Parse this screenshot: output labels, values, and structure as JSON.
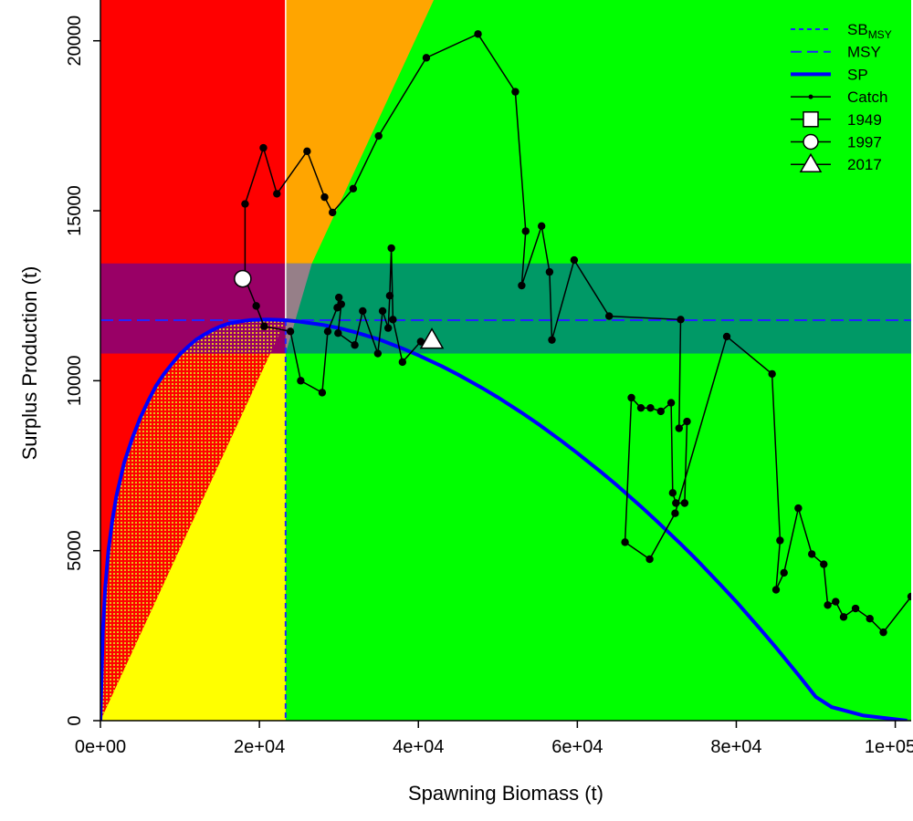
{
  "chart_data": {
    "type": "scatter",
    "title": "",
    "xlabel": "Spawning Biomass (t)",
    "ylabel": "Surplus Production (t)",
    "xlim": [
      0,
      102000
    ],
    "ylim": [
      0,
      21200
    ],
    "x_ticks": [
      {
        "value": 0,
        "label": "0e+00"
      },
      {
        "value": 20000,
        "label": "2e+04"
      },
      {
        "value": 40000,
        "label": "4e+04"
      },
      {
        "value": 60000,
        "label": "6e+04"
      },
      {
        "value": 80000,
        "label": "8e+04"
      },
      {
        "value": 100000,
        "label": "1e+05"
      }
    ],
    "y_ticks": [
      {
        "value": 0,
        "label": "0"
      },
      {
        "value": 5000,
        "label": "5000"
      },
      {
        "value": 10000,
        "label": "10000"
      },
      {
        "value": 15000,
        "label": "15000"
      },
      {
        "value": 20000,
        "label": "20000"
      }
    ],
    "grid": false,
    "legend_position": "top-right",
    "reference": {
      "sb_msy": 23300,
      "msy": 11780,
      "msy_band": [
        10800,
        13450
      ],
      "zone_colors": {
        "red": "#ff0000",
        "orange": "#ffa500",
        "yellow": "#ffff00",
        "green": "#00ff00",
        "band_over_red": "#990066",
        "band_over_green": "#009966",
        "msy_line": "#2222ff",
        "sp_curve": "#0000ff",
        "stipple": "#e3c21a"
      }
    },
    "legend": [
      {
        "name": "SB",
        "subscript": "MSY",
        "style": "short-dash"
      },
      {
        "name": "MSY",
        "style": "long-dash"
      },
      {
        "name": "SP",
        "style": "thick-line"
      },
      {
        "name": "Catch",
        "style": "line-point"
      },
      {
        "name": "1949",
        "style": "square"
      },
      {
        "name": "1997",
        "style": "circle"
      },
      {
        "name": "2017",
        "style": "triangle"
      }
    ],
    "surplus_production": [
      [
        0,
        0
      ],
      [
        300,
        2600
      ],
      [
        600,
        3900
      ],
      [
        1000,
        5000
      ],
      [
        1500,
        5900
      ],
      [
        2000,
        6600
      ],
      [
        3000,
        7600
      ],
      [
        4000,
        8300
      ],
      [
        5000,
        8900
      ],
      [
        6000,
        9400
      ],
      [
        7000,
        9850
      ],
      [
        8000,
        10200
      ],
      [
        9000,
        10500
      ],
      [
        10000,
        10780
      ],
      [
        11000,
        11000
      ],
      [
        12000,
        11200
      ],
      [
        13000,
        11350
      ],
      [
        14000,
        11480
      ],
      [
        15000,
        11590
      ],
      [
        16000,
        11670
      ],
      [
        17000,
        11720
      ],
      [
        18000,
        11760
      ],
      [
        19000,
        11785
      ],
      [
        20000,
        11795
      ],
      [
        21000,
        11800
      ],
      [
        22000,
        11795
      ],
      [
        23300,
        11780
      ],
      [
        25000,
        11740
      ],
      [
        28000,
        11640
      ],
      [
        30000,
        11550
      ],
      [
        32000,
        11430
      ],
      [
        35000,
        11220
      ],
      [
        38000,
        10950
      ],
      [
        40000,
        10750
      ],
      [
        43000,
        10420
      ],
      [
        45000,
        10180
      ],
      [
        48000,
        9790
      ],
      [
        50000,
        9510
      ],
      [
        53000,
        9060
      ],
      [
        55000,
        8740
      ],
      [
        58000,
        8230
      ],
      [
        60000,
        7870
      ],
      [
        63000,
        7310
      ],
      [
        65000,
        6920
      ],
      [
        68000,
        6300
      ],
      [
        70000,
        5870
      ],
      [
        73000,
        5200
      ],
      [
        75000,
        4740
      ],
      [
        78000,
        4000
      ],
      [
        80000,
        3500
      ],
      [
        83000,
        2700
      ],
      [
        85000,
        2150
      ],
      [
        88000,
        1290
      ],
      [
        90000,
        700
      ],
      [
        92000,
        400
      ],
      [
        96000,
        150
      ],
      [
        101500,
        0
      ]
    ],
    "catch_trajectory": [
      [
        18200,
        13000
      ],
      [
        18200,
        15200
      ],
      [
        20500,
        16850
      ],
      [
        22200,
        15500
      ],
      [
        26000,
        16750
      ],
      [
        28200,
        15400
      ],
      [
        29200,
        14950
      ],
      [
        31800,
        15650
      ],
      [
        35000,
        17200
      ],
      [
        41000,
        19500
      ],
      [
        47500,
        20200
      ],
      [
        52200,
        18500
      ],
      [
        53500,
        14400
      ],
      [
        53000,
        12800
      ],
      [
        55500,
        14550
      ],
      [
        56500,
        13200
      ],
      [
        56800,
        11200
      ],
      [
        59600,
        13550
      ],
      [
        64000,
        11900
      ],
      [
        73000,
        11800
      ],
      [
        72800,
        8600
      ],
      [
        73800,
        8800
      ],
      [
        73500,
        6400
      ],
      [
        72400,
        6400
      ],
      [
        72000,
        6700
      ],
      [
        71800,
        9350
      ],
      [
        70500,
        9100
      ],
      [
        69200,
        9200
      ],
      [
        68000,
        9200
      ],
      [
        66800,
        9500
      ],
      [
        66000,
        5250
      ],
      [
        69100,
        4750
      ],
      [
        72300,
        6100
      ],
      [
        78800,
        11300
      ],
      [
        84500,
        10200
      ],
      [
        85500,
        5300
      ],
      [
        85000,
        3850
      ],
      [
        86000,
        4350
      ],
      [
        87800,
        6250
      ],
      [
        89500,
        4900
      ],
      [
        91000,
        4600
      ],
      [
        91500,
        3400
      ],
      [
        92500,
        3500
      ],
      [
        93500,
        3050
      ],
      [
        95000,
        3300
      ],
      [
        96800,
        3000
      ],
      [
        98500,
        2600
      ],
      [
        102000,
        3650
      ]
    ],
    "catch_branch": [
      [
        19600,
        12200
      ],
      [
        20600,
        11600
      ],
      [
        23900,
        11450
      ],
      [
        25200,
        10000
      ],
      [
        27900,
        9650
      ],
      [
        28600,
        11450
      ],
      [
        29800,
        12150
      ],
      [
        30000,
        12450
      ],
      [
        30300,
        12250
      ],
      [
        29900,
        11400
      ],
      [
        32000,
        11050
      ],
      [
        33000,
        12050
      ],
      [
        34900,
        10800
      ],
      [
        35500,
        12050
      ],
      [
        36200,
        11550
      ],
      [
        36400,
        12500
      ],
      [
        36600,
        13900
      ],
      [
        36800,
        11800
      ],
      [
        38000,
        10550
      ],
      [
        40300,
        11150
      ],
      [
        41700,
        11200
      ]
    ],
    "highlight_points": [
      {
        "year": "1997",
        "x": 17900,
        "y": 13000,
        "marker": "circle"
      },
      {
        "year": "2017",
        "x": 41700,
        "y": 11200,
        "marker": "triangle"
      }
    ]
  }
}
